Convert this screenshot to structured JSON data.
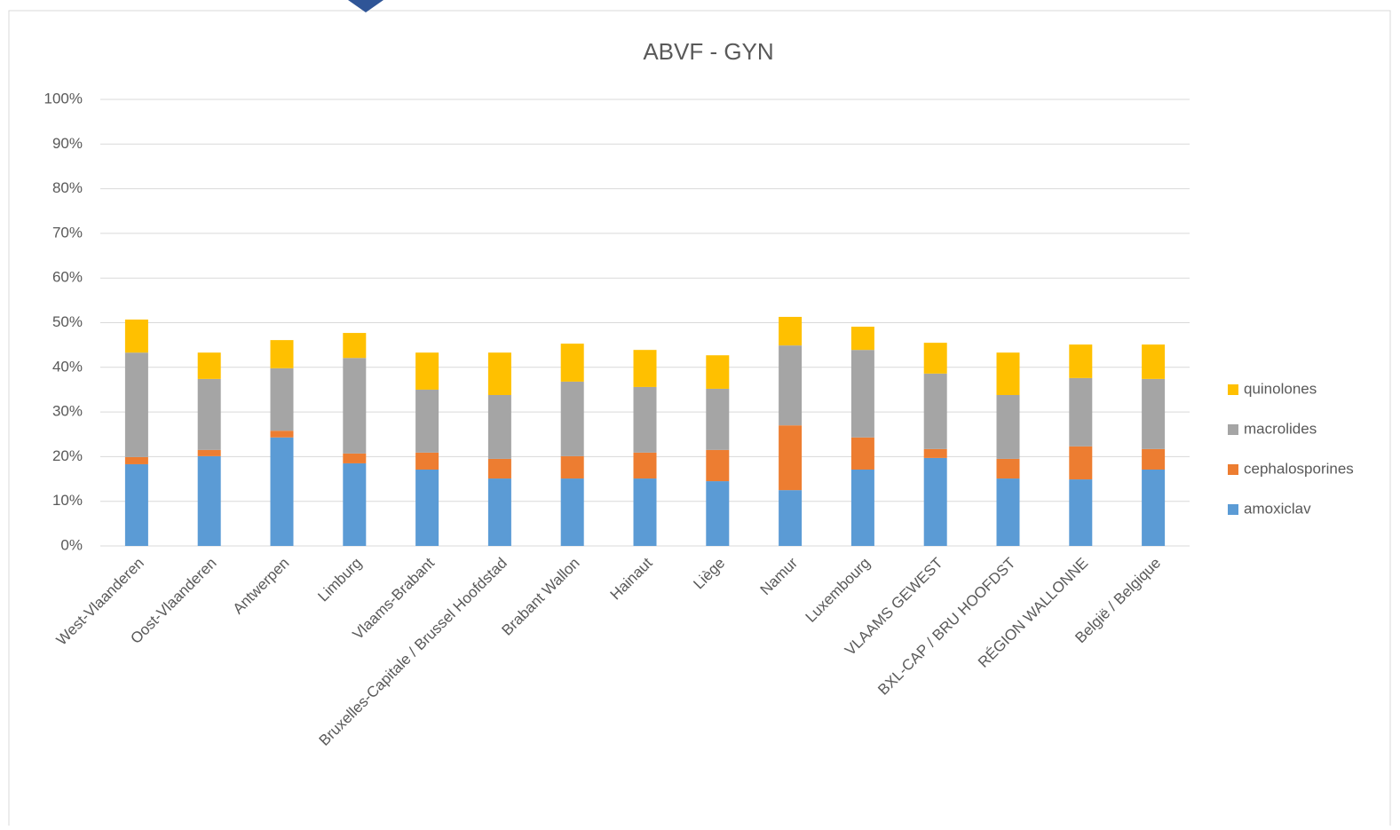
{
  "chart_data": {
    "type": "stacked_bar",
    "title": "ABVF - GYN",
    "categories": [
      "West-Vlaanderen",
      "Oost-Vlaanderen",
      "Antwerpen",
      "Limburg",
      "Vlaams-Brabant",
      "Bruxelles-Capitale / Brussel Hoofdstad",
      "Brabant Wallon",
      "Hainaut",
      "Liège",
      "Namur",
      "Luxembourg",
      "VLAAMS GEWEST",
      "BXL-CAP / BRU HOOFDST",
      "RÉGION WALLONNE",
      "België / Belgique"
    ],
    "series": [
      {
        "name": "amoxiclav",
        "color": "#5b9bd5",
        "values": [
          18.3,
          20.1,
          24.3,
          18.5,
          17.1,
          15.1,
          15.1,
          15.1,
          14.5,
          12.5,
          17.1,
          19.7,
          15.1,
          14.9,
          17.1
        ]
      },
      {
        "name": "cephalosporines",
        "color": "#ed7d31",
        "values": [
          1.6,
          1.4,
          1.5,
          2.2,
          3.8,
          4.4,
          5.0,
          5.8,
          7.0,
          14.5,
          7.2,
          2.0,
          4.4,
          7.4,
          4.6
        ]
      },
      {
        "name": "macrolides",
        "color": "#a5a5a5",
        "values": [
          23.4,
          15.9,
          14.0,
          21.4,
          14.1,
          14.3,
          16.7,
          14.7,
          13.7,
          17.9,
          19.6,
          16.9,
          14.3,
          15.3,
          15.7
        ]
      },
      {
        "name": "quinolones",
        "color": "#ffc000",
        "values": [
          7.4,
          5.9,
          6.3,
          5.6,
          8.3,
          9.5,
          8.5,
          8.3,
          7.5,
          6.4,
          5.2,
          6.9,
          9.5,
          7.5,
          7.7
        ]
      }
    ],
    "ylim": [
      0,
      100
    ],
    "yticks": [
      {
        "value": 0,
        "label": "0%"
      },
      {
        "value": 10,
        "label": "10%"
      },
      {
        "value": 20,
        "label": "20%"
      },
      {
        "value": 30,
        "label": "30%"
      },
      {
        "value": 40,
        "label": "40%"
      },
      {
        "value": 50,
        "label": "50%"
      },
      {
        "value": 60,
        "label": "60%"
      },
      {
        "value": 70,
        "label": "70%"
      },
      {
        "value": 80,
        "label": "80%"
      },
      {
        "value": 90,
        "label": "90%"
      },
      {
        "value": 100,
        "label": "100%"
      }
    ],
    "grid": true,
    "legend": "right"
  }
}
